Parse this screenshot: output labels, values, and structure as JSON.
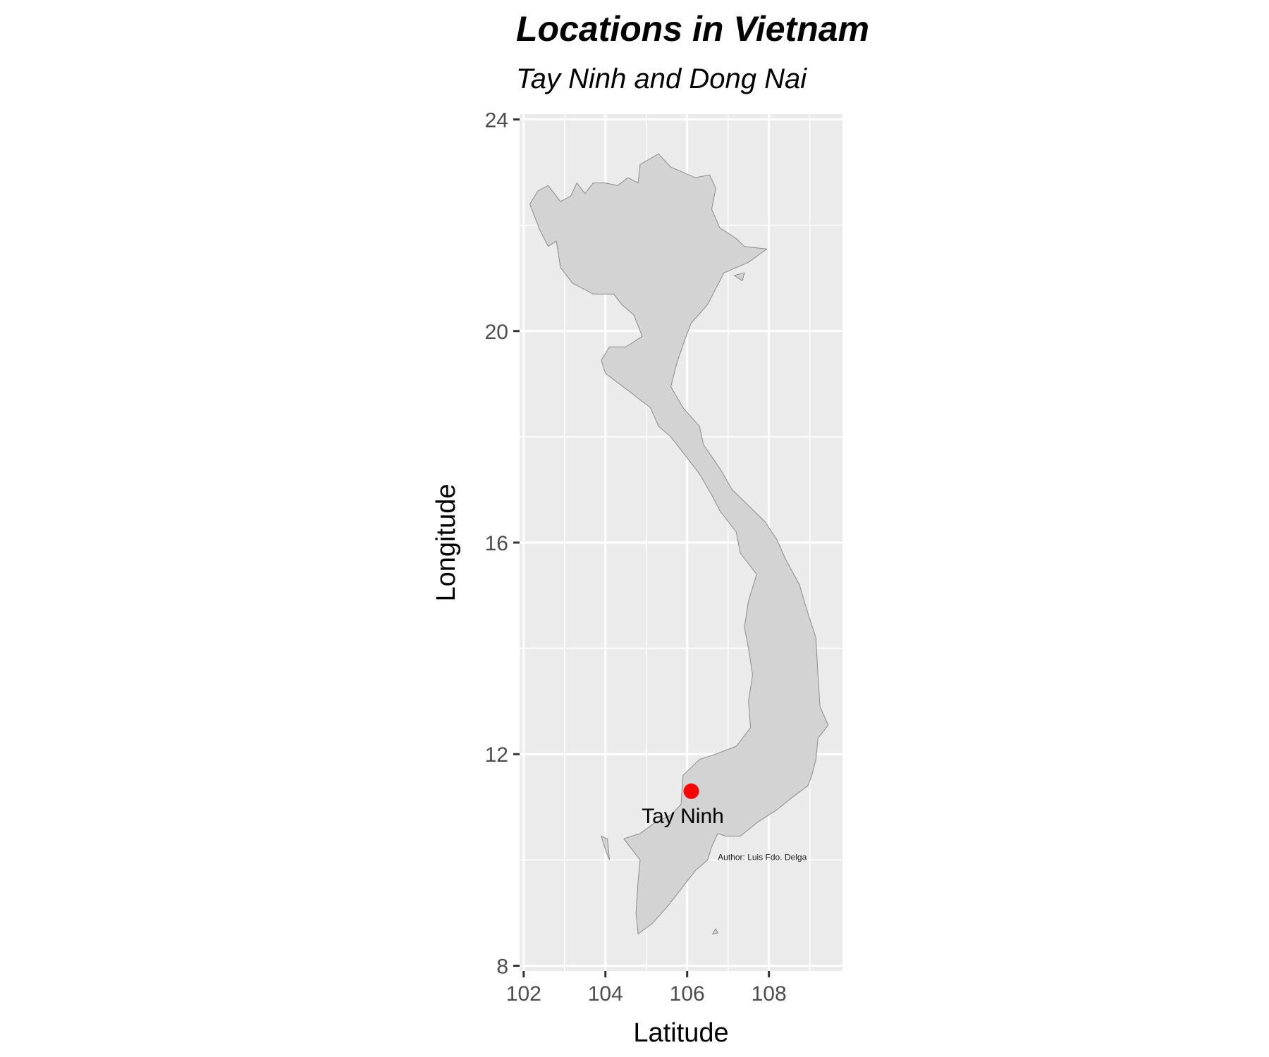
{
  "title": "Locations in Vietnam",
  "subtitle": "Tay Ninh and Dong Nai",
  "chart_data": {
    "type": "scatter",
    "xlabel": "Latitude",
    "ylabel": "Longitude",
    "xlim": [
      101.9,
      109.8
    ],
    "ylim": [
      7.9,
      24.1
    ],
    "x_ticks": [
      102,
      104,
      106,
      108
    ],
    "x_tick_labels": [
      "102",
      "104",
      "106",
      "108"
    ],
    "y_ticks": [
      8,
      12,
      16,
      20,
      24
    ],
    "y_tick_labels": [
      "8",
      "12",
      "16",
      "20",
      "24"
    ],
    "grid": true,
    "points": [
      {
        "label": "Tay Ninh",
        "x": 106.1,
        "y": 11.3,
        "color": "#ff0000"
      }
    ],
    "caption": "Author: Luis Fdo. Delga",
    "caption_anchor": {
      "x": 106.75,
      "y": 10.0
    },
    "colors": {
      "panel_background": "#ebebeb",
      "grid_line": "#ffffff",
      "land_fill": "#d3d3d3",
      "land_stroke": "#8c8c8c",
      "point": "#ff0000"
    },
    "land_outline": [
      [
        102.15,
        22.4
      ],
      [
        102.35,
        22.65
      ],
      [
        102.6,
        22.75
      ],
      [
        102.9,
        22.45
      ],
      [
        103.15,
        22.55
      ],
      [
        103.3,
        22.8
      ],
      [
        103.5,
        22.6
      ],
      [
        103.7,
        22.8
      ],
      [
        104.0,
        22.8
      ],
      [
        104.3,
        22.75
      ],
      [
        104.55,
        22.9
      ],
      [
        104.8,
        22.8
      ],
      [
        104.85,
        23.15
      ],
      [
        105.3,
        23.35
      ],
      [
        105.6,
        23.1
      ],
      [
        105.9,
        23.0
      ],
      [
        106.2,
        22.9
      ],
      [
        106.55,
        22.95
      ],
      [
        106.7,
        22.7
      ],
      [
        106.6,
        22.3
      ],
      [
        106.8,
        21.95
      ],
      [
        107.2,
        21.75
      ],
      [
        107.4,
        21.6
      ],
      [
        107.95,
        21.55
      ],
      [
        107.5,
        21.3
      ],
      [
        106.9,
        21.1
      ],
      [
        106.7,
        20.8
      ],
      [
        106.5,
        20.5
      ],
      [
        106.1,
        20.15
      ],
      [
        105.95,
        19.85
      ],
      [
        105.75,
        19.4
      ],
      [
        105.6,
        18.95
      ],
      [
        105.9,
        18.55
      ],
      [
        106.3,
        18.2
      ],
      [
        106.4,
        17.85
      ],
      [
        106.8,
        17.4
      ],
      [
        107.1,
        17.0
      ],
      [
        107.5,
        16.7
      ],
      [
        107.9,
        16.4
      ],
      [
        108.2,
        16.05
      ],
      [
        108.4,
        15.7
      ],
      [
        108.75,
        15.2
      ],
      [
        108.9,
        14.8
      ],
      [
        109.15,
        14.2
      ],
      [
        109.2,
        13.5
      ],
      [
        109.25,
        12.9
      ],
      [
        109.45,
        12.55
      ],
      [
        109.2,
        12.3
      ],
      [
        109.15,
        11.9
      ],
      [
        109.05,
        11.6
      ],
      [
        108.95,
        11.4
      ],
      [
        108.6,
        11.2
      ],
      [
        108.2,
        10.95
      ],
      [
        107.7,
        10.7
      ],
      [
        107.3,
        10.45
      ],
      [
        106.95,
        10.45
      ],
      [
        106.75,
        10.5
      ],
      [
        106.6,
        10.25
      ],
      [
        106.5,
        10.0
      ],
      [
        106.2,
        9.8
      ],
      [
        106.0,
        9.6
      ],
      [
        105.55,
        9.15
      ],
      [
        105.15,
        8.8
      ],
      [
        104.8,
        8.6
      ],
      [
        104.75,
        9.0
      ],
      [
        104.8,
        9.6
      ],
      [
        104.85,
        10.0
      ],
      [
        104.45,
        10.4
      ],
      [
        104.85,
        10.5
      ],
      [
        105.2,
        10.7
      ],
      [
        105.6,
        10.85
      ],
      [
        105.85,
        11.05
      ],
      [
        105.9,
        11.6
      ],
      [
        106.3,
        11.9
      ],
      [
        106.7,
        12.0
      ],
      [
        107.2,
        12.15
      ],
      [
        107.55,
        12.5
      ],
      [
        107.5,
        13.0
      ],
      [
        107.6,
        13.5
      ],
      [
        107.5,
        14.0
      ],
      [
        107.4,
        14.4
      ],
      [
        107.5,
        14.9
      ],
      [
        107.7,
        15.4
      ],
      [
        107.3,
        15.8
      ],
      [
        107.2,
        16.2
      ],
      [
        106.8,
        16.6
      ],
      [
        106.6,
        16.9
      ],
      [
        106.3,
        17.3
      ],
      [
        105.9,
        17.7
      ],
      [
        105.6,
        18.0
      ],
      [
        105.3,
        18.2
      ],
      [
        105.1,
        18.55
      ],
      [
        104.6,
        18.85
      ],
      [
        104.0,
        19.2
      ],
      [
        103.9,
        19.45
      ],
      [
        104.1,
        19.7
      ],
      [
        104.5,
        19.7
      ],
      [
        104.9,
        19.9
      ],
      [
        104.7,
        20.3
      ],
      [
        104.4,
        20.5
      ],
      [
        104.2,
        20.7
      ],
      [
        103.7,
        20.7
      ],
      [
        103.2,
        20.9
      ],
      [
        102.9,
        21.2
      ],
      [
        102.8,
        21.7
      ],
      [
        102.6,
        21.6
      ],
      [
        102.4,
        21.9
      ],
      [
        102.15,
        22.4
      ]
    ],
    "islands": [
      [
        [
          103.9,
          10.45
        ],
        [
          104.05,
          10.4
        ],
        [
          104.1,
          10.0
        ],
        [
          104.0,
          10.2
        ],
        [
          103.9,
          10.45
        ]
      ],
      [
        [
          107.15,
          21.05
        ],
        [
          107.4,
          21.1
        ],
        [
          107.35,
          20.95
        ],
        [
          107.15,
          21.05
        ]
      ],
      [
        [
          106.7,
          8.7
        ],
        [
          106.62,
          8.6
        ],
        [
          106.75,
          8.62
        ],
        [
          106.7,
          8.7
        ]
      ]
    ]
  }
}
